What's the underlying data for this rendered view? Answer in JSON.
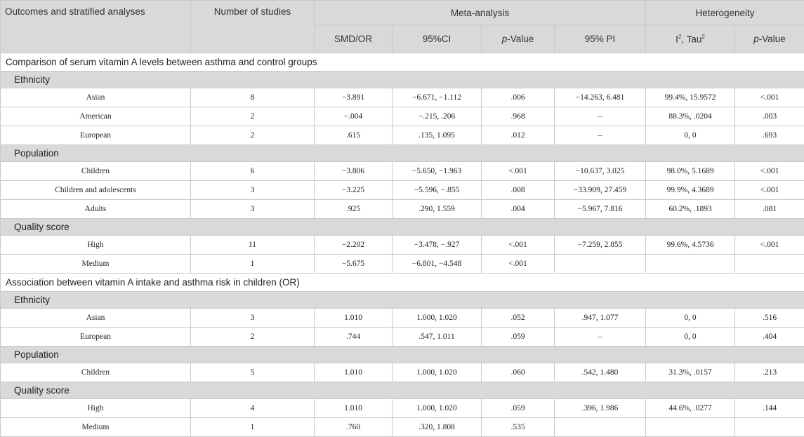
{
  "header": {
    "col_outcomes": "Outcomes and stratified analyses",
    "col_studies": "Number of studies",
    "col_meta": "Meta-analysis",
    "col_hetero": "Heterogeneity",
    "sub_smd": "SMD/OR",
    "sub_ci": "95%CI",
    "sub_p_italic": "p",
    "sub_p_rest": "-Value",
    "sub_pi": "95% PI",
    "sub_i2_base": "I",
    "sub_i2_sup": "2",
    "sub_tau_base": ", Tau",
    "sub_tau_sup": "2",
    "sub_hp_italic": "p",
    "sub_hp_rest": "-Value"
  },
  "sections": [
    {
      "title": "Comparison of serum vitamin A levels between asthma and control groups",
      "groups": [
        {
          "name": "Ethnicity",
          "rows": [
            [
              "Asian",
              "8",
              "−3.891",
              "−6.671, −1.112",
              ".006",
              "−14.263, 6.481",
              "99.4%, 15.9572",
              "<.001"
            ],
            [
              "American",
              "2",
              "−.004",
              "−.215, .206",
              ".968",
              "–",
              "88.3%, .0204",
              ".003"
            ],
            [
              "European",
              "2",
              ".615",
              ".135, 1.095",
              ".012",
              "–",
              "0, 0",
              ".693"
            ]
          ]
        },
        {
          "name": "Population",
          "rows": [
            [
              "Children",
              "6",
              "−3.806",
              "−5.650, −1.963",
              "<.001",
              "−10.637, 3.025",
              "98.0%, 5.1689",
              "<.001"
            ],
            [
              "Children and adolescents",
              "3",
              "−3.225",
              "−5.596, −.855",
              ".008",
              "−33.909, 27.459",
              "99.9%, 4.3689",
              "<.001"
            ],
            [
              "Adults",
              "3",
              ".925",
              ".290, 1.559",
              ".004",
              "−5.967, 7.816",
              "60.2%, .1893",
              ".081"
            ]
          ]
        },
        {
          "name": "Quality score",
          "rows": [
            [
              "High",
              "11",
              "−2.202",
              "−3.478, −.927",
              "<.001",
              "−7.259, 2.855",
              "99.6%, 4.5736",
              "<.001"
            ],
            [
              "Medium",
              "1",
              "−5.675",
              "−6.801, −4.548",
              "<.001",
              "",
              "",
              ""
            ]
          ]
        }
      ]
    },
    {
      "title": "Association between vitamin A intake and asthma risk in children (OR)",
      "groups": [
        {
          "name": "Ethnicity",
          "rows": [
            [
              "Asian",
              "3",
              "1.010",
              "1.000, 1.020",
              ".052",
              ".947, 1.077",
              "0, 0",
              ".516"
            ],
            [
              "European",
              "2",
              ".744",
              ".547, 1.011",
              ".059",
              "–",
              "0, 0",
              ".404"
            ]
          ]
        },
        {
          "name": "Population",
          "rows": [
            [
              "Children",
              "5",
              "1.010",
              "1.000, 1.020",
              ".060",
              ".542, 1.480",
              "31.3%, .0157",
              ".213"
            ]
          ]
        },
        {
          "name": "Quality score",
          "rows": [
            [
              "High",
              "4",
              "1.010",
              "1.000, 1.020",
              ".059",
              ".396, 1.986",
              "44.6%, .0277",
              ".144"
            ],
            [
              "Medium",
              "1",
              ".760",
              ".320, 1.808",
              ".535",
              "",
              "",
              ""
            ]
          ]
        }
      ]
    }
  ]
}
